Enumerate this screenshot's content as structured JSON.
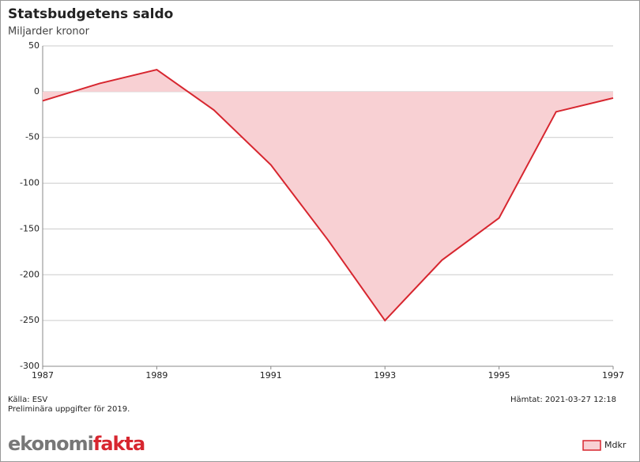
{
  "chart_data": {
    "type": "area",
    "title": "Statsbudgetens saldo",
    "subtitle": "Miljarder kronor",
    "x": [
      1987,
      1988,
      1989,
      1990,
      1991,
      1992,
      1993,
      1994,
      1995,
      1996,
      1997
    ],
    "series": [
      {
        "name": "Mdkr",
        "color": "#d7262f",
        "fill": "#f8d0d3",
        "values": [
          -10,
          9,
          24,
          -20,
          -80,
          -162,
          -250,
          -184,
          -138,
          -22,
          -7
        ]
      }
    ],
    "xlim": [
      1987,
      1997
    ],
    "xticks": [
      1987,
      1989,
      1991,
      1993,
      1995,
      1997
    ],
    "ylim": [
      -300,
      50
    ],
    "yticks": [
      -300,
      -250,
      -200,
      -150,
      -100,
      -50,
      0,
      50
    ],
    "grid": true,
    "source": "Källa: ESV",
    "note": "Preliminära uppgifter för 2019.",
    "retrieved": "Hämtat: 2021-03-27 12:18",
    "logo": [
      "ekonomi",
      "fakta"
    ]
  }
}
